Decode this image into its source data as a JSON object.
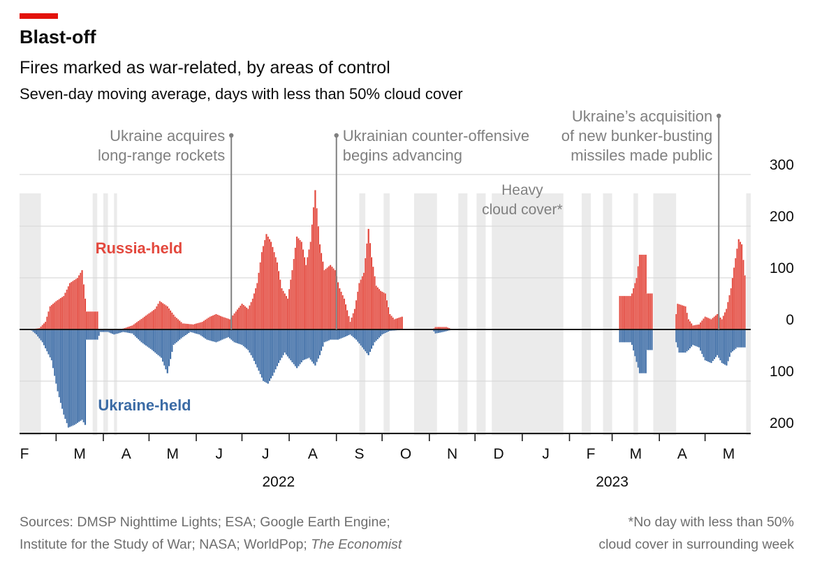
{
  "header": {
    "accent_color": "#e3120b",
    "title": "Blast-off",
    "subtitle": "Fires marked as war-related, by areas of control",
    "description": "Seven-day moving average, days with less than 50% cloud cover"
  },
  "footer": {
    "sources_line1": "Sources: DMSP Nighttime Lights; ESA; Google Earth Engine;",
    "sources_line2": "Institute for the Study of War; NASA; WorldPop; ",
    "sources_italic": "The Economist",
    "footnote_line1": "*No day with less than 50%",
    "footnote_line2": "cloud cover in surrounding week"
  },
  "chart_data": {
    "type": "bar",
    "layout": "diverging",
    "x_unit": "date",
    "x_range": [
      "2022-02-05",
      "2023-05-25"
    ],
    "ylim": [
      -200,
      300
    ],
    "y_ticks": [
      {
        "value": 300,
        "label": "300"
      },
      {
        "value": 200,
        "label": "200"
      },
      {
        "value": 100,
        "label": "100"
      },
      {
        "value": 0,
        "label": "0"
      },
      {
        "value": -100,
        "label": "100"
      },
      {
        "value": -200,
        "label": "200"
      }
    ],
    "x_month_labels": [
      "F",
      "M",
      "A",
      "M",
      "J",
      "J",
      "A",
      "S",
      "O",
      "N",
      "D",
      "J",
      "F",
      "M",
      "A",
      "M"
    ],
    "x_month_starts": [
      "2022-02-01",
      "2022-03-01",
      "2022-04-01",
      "2022-05-01",
      "2022-06-01",
      "2022-07-01",
      "2022-08-01",
      "2022-09-01",
      "2022-10-01",
      "2022-11-01",
      "2022-12-01",
      "2023-01-01",
      "2023-02-01",
      "2023-03-01",
      "2023-04-01",
      "2023-05-01",
      "2023-06-01"
    ],
    "year_labels": [
      {
        "label": "2022",
        "date": "2022-07-25"
      },
      {
        "label": "2023",
        "date": "2023-03-01"
      }
    ],
    "grid": true,
    "series": [
      {
        "name": "Russia-held",
        "color": "#e3483d",
        "points": [
          [
            "2022-02-12",
            0
          ],
          [
            "2022-02-18",
            3
          ],
          [
            "2022-02-22",
            15
          ],
          [
            "2022-02-25",
            45
          ],
          [
            "2022-03-01",
            55
          ],
          [
            "2022-03-06",
            65
          ],
          [
            "2022-03-10",
            90
          ],
          [
            "2022-03-15",
            100
          ],
          [
            "2022-03-18",
            115
          ],
          [
            "2022-03-20",
            60
          ],
          [
            "2022-03-21",
            35
          ],
          [
            "2022-03-28",
            35
          ],
          [
            "2022-03-29",
            0
          ],
          [
            "2022-04-12",
            0
          ],
          [
            "2022-04-20",
            8
          ],
          [
            "2022-04-28",
            25
          ],
          [
            "2022-05-05",
            40
          ],
          [
            "2022-05-08",
            55
          ],
          [
            "2022-05-13",
            45
          ],
          [
            "2022-05-18",
            25
          ],
          [
            "2022-05-23",
            12
          ],
          [
            "2022-05-30",
            10
          ],
          [
            "2022-06-05",
            15
          ],
          [
            "2022-06-10",
            25
          ],
          [
            "2022-06-14",
            30
          ],
          [
            "2022-06-18",
            25
          ],
          [
            "2022-06-23",
            20
          ],
          [
            "2022-06-27",
            35
          ],
          [
            "2022-07-01",
            50
          ],
          [
            "2022-07-05",
            40
          ],
          [
            "2022-07-08",
            60
          ],
          [
            "2022-07-11",
            90
          ],
          [
            "2022-07-14",
            150
          ],
          [
            "2022-07-17",
            185
          ],
          [
            "2022-07-20",
            170
          ],
          [
            "2022-07-24",
            130
          ],
          [
            "2022-07-27",
            80
          ],
          [
            "2022-07-31",
            60
          ],
          [
            "2022-08-03",
            115
          ],
          [
            "2022-08-06",
            180
          ],
          [
            "2022-08-09",
            170
          ],
          [
            "2022-08-12",
            125
          ],
          [
            "2022-08-15",
            170
          ],
          [
            "2022-08-18",
            270
          ],
          [
            "2022-08-21",
            165
          ],
          [
            "2022-08-24",
            115
          ],
          [
            "2022-08-28",
            125
          ],
          [
            "2022-08-31",
            115
          ],
          [
            "2022-09-03",
            80
          ],
          [
            "2022-09-06",
            60
          ],
          [
            "2022-09-10",
            15
          ],
          [
            "2022-09-13",
            40
          ],
          [
            "2022-09-16",
            90
          ],
          [
            "2022-09-19",
            110
          ],
          [
            "2022-09-22",
            195
          ],
          [
            "2022-09-24",
            140
          ],
          [
            "2022-09-27",
            85
          ],
          [
            "2022-09-30",
            75
          ],
          [
            "2022-10-03",
            70
          ],
          [
            "2022-10-06",
            30
          ],
          [
            "2022-10-09",
            20
          ],
          [
            "2022-10-14",
            25
          ],
          [
            "2022-10-15",
            0
          ],
          [
            "2022-11-03",
            0
          ],
          [
            "2022-11-05",
            5
          ],
          [
            "2022-11-12",
            5
          ],
          [
            "2022-11-14",
            3
          ],
          [
            "2022-11-16",
            0
          ],
          [
            "2022-11-26",
            0
          ],
          [
            "2022-11-29",
            1
          ],
          [
            "2023-02-24",
            0
          ],
          [
            "2023-03-05",
            0
          ],
          [
            "2023-03-06",
            65
          ],
          [
            "2023-03-13",
            65
          ],
          [
            "2023-03-14",
            70
          ],
          [
            "2023-03-17",
            100
          ],
          [
            "2023-03-19",
            145
          ],
          [
            "2023-03-23",
            145
          ],
          [
            "2023-03-24",
            70
          ],
          [
            "2023-03-27",
            70
          ],
          [
            "2023-03-28",
            0
          ],
          [
            "2023-04-11",
            0
          ],
          [
            "2023-04-12",
            30
          ],
          [
            "2023-04-13",
            50
          ],
          [
            "2023-04-18",
            45
          ],
          [
            "2023-04-20",
            20
          ],
          [
            "2023-04-23",
            8
          ],
          [
            "2023-04-27",
            10
          ],
          [
            "2023-05-01",
            25
          ],
          [
            "2023-05-05",
            20
          ],
          [
            "2023-05-09",
            30
          ],
          [
            "2023-05-12",
            20
          ],
          [
            "2023-05-15",
            40
          ],
          [
            "2023-05-18",
            80
          ],
          [
            "2023-05-20",
            120
          ],
          [
            "2023-05-23",
            175
          ],
          [
            "2023-05-25",
            165
          ],
          [
            "2023-05-27",
            105
          ],
          [
            "2023-05-28",
            0
          ]
        ]
      },
      {
        "name": "Ukraine-held",
        "color": "#3b6ba5",
        "points": [
          [
            "2022-02-12",
            0
          ],
          [
            "2022-02-16",
            10
          ],
          [
            "2022-02-20",
            25
          ],
          [
            "2022-02-26",
            60
          ],
          [
            "2022-03-02",
            120
          ],
          [
            "2022-03-06",
            165
          ],
          [
            "2022-03-09",
            190
          ],
          [
            "2022-03-13",
            185
          ],
          [
            "2022-03-18",
            175
          ],
          [
            "2022-03-20",
            185
          ],
          [
            "2022-03-21",
            20
          ],
          [
            "2022-03-28",
            20
          ],
          [
            "2022-03-30",
            5
          ],
          [
            "2022-04-04",
            5
          ],
          [
            "2022-04-08",
            10
          ],
          [
            "2022-04-14",
            5
          ],
          [
            "2022-04-20",
            8
          ],
          [
            "2022-04-26",
            25
          ],
          [
            "2022-05-03",
            40
          ],
          [
            "2022-05-09",
            55
          ],
          [
            "2022-05-13",
            85
          ],
          [
            "2022-05-17",
            30
          ],
          [
            "2022-05-23",
            15
          ],
          [
            "2022-05-28",
            5
          ],
          [
            "2022-06-03",
            10
          ],
          [
            "2022-06-08",
            20
          ],
          [
            "2022-06-14",
            25
          ],
          [
            "2022-06-18",
            20
          ],
          [
            "2022-06-22",
            15
          ],
          [
            "2022-06-26",
            25
          ],
          [
            "2022-07-01",
            30
          ],
          [
            "2022-07-05",
            40
          ],
          [
            "2022-07-08",
            55
          ],
          [
            "2022-07-12",
            80
          ],
          [
            "2022-07-15",
            100
          ],
          [
            "2022-07-18",
            105
          ],
          [
            "2022-07-21",
            90
          ],
          [
            "2022-07-25",
            65
          ],
          [
            "2022-07-29",
            45
          ],
          [
            "2022-08-02",
            60
          ],
          [
            "2022-08-06",
            75
          ],
          [
            "2022-08-10",
            60
          ],
          [
            "2022-08-14",
            55
          ],
          [
            "2022-08-18",
            70
          ],
          [
            "2022-08-21",
            50
          ],
          [
            "2022-08-24",
            25
          ],
          [
            "2022-08-28",
            20
          ],
          [
            "2022-09-02",
            20
          ],
          [
            "2022-09-06",
            15
          ],
          [
            "2022-09-10",
            10
          ],
          [
            "2022-09-14",
            20
          ],
          [
            "2022-09-18",
            35
          ],
          [
            "2022-09-22",
            50
          ],
          [
            "2022-09-26",
            25
          ],
          [
            "2022-10-01",
            10
          ],
          [
            "2022-10-06",
            3
          ],
          [
            "2022-10-14",
            1
          ],
          [
            "2022-10-15",
            0
          ],
          [
            "2022-11-03",
            0
          ],
          [
            "2022-11-05",
            8
          ],
          [
            "2022-11-10",
            5
          ],
          [
            "2022-11-14",
            2
          ],
          [
            "2022-11-16",
            0
          ],
          [
            "2023-03-05",
            0
          ],
          [
            "2023-03-06",
            25
          ],
          [
            "2023-03-13",
            25
          ],
          [
            "2023-03-14",
            30
          ],
          [
            "2023-03-19",
            85
          ],
          [
            "2023-03-23",
            85
          ],
          [
            "2023-03-24",
            40
          ],
          [
            "2023-03-27",
            40
          ],
          [
            "2023-03-28",
            0
          ],
          [
            "2023-04-11",
            0
          ],
          [
            "2023-04-12",
            25
          ],
          [
            "2023-04-14",
            45
          ],
          [
            "2023-04-18",
            45
          ],
          [
            "2023-04-20",
            40
          ],
          [
            "2023-04-23",
            30
          ],
          [
            "2023-04-27",
            35
          ],
          [
            "2023-05-01",
            60
          ],
          [
            "2023-05-05",
            65
          ],
          [
            "2023-05-09",
            50
          ],
          [
            "2023-05-12",
            65
          ],
          [
            "2023-05-15",
            70
          ],
          [
            "2023-05-18",
            45
          ],
          [
            "2023-05-22",
            35
          ],
          [
            "2023-05-27",
            35
          ],
          [
            "2023-05-28",
            0
          ]
        ]
      }
    ],
    "shaded_periods": [
      [
        "2022-02-05",
        "2022-02-19"
      ],
      [
        "2022-03-25",
        "2022-03-28"
      ],
      [
        "2022-04-01",
        "2022-04-04"
      ],
      [
        "2022-04-08",
        "2022-04-10"
      ],
      [
        "2022-09-16",
        "2022-09-20"
      ],
      [
        "2022-10-02",
        "2022-10-06"
      ],
      [
        "2022-10-22",
        "2022-11-06"
      ],
      [
        "2022-11-20",
        "2022-11-26"
      ],
      [
        "2022-12-02",
        "2022-12-08"
      ],
      [
        "2022-12-12",
        "2023-01-28"
      ],
      [
        "2023-02-09",
        "2023-02-15"
      ],
      [
        "2023-02-23",
        "2023-03-01"
      ],
      [
        "2023-03-15",
        "2023-03-18"
      ],
      [
        "2023-03-28",
        "2023-04-12"
      ],
      [
        "2023-05-28",
        "2023-05-31"
      ]
    ],
    "annotations": [
      {
        "id": "rockets",
        "date": "2022-06-24",
        "lines": [
          "Ukraine acquires",
          "long-range rockets"
        ],
        "align": "right"
      },
      {
        "id": "counter",
        "date": "2022-09-01",
        "lines": [
          "Ukrainian counter-offensive",
          "begins advancing"
        ],
        "align": "left"
      },
      {
        "id": "missiles",
        "date": "2023-05-10",
        "lines": [
          "Ukraine’s acquisition",
          "of new bunker-busting",
          "missiles made public"
        ],
        "align": "right"
      }
    ],
    "series_labels": [
      {
        "text": "Russia-held",
        "series": 0
      },
      {
        "text": "Ukraine-held",
        "series": 1
      }
    ],
    "cloud_note": [
      "Heavy",
      "cloud cover*"
    ]
  }
}
